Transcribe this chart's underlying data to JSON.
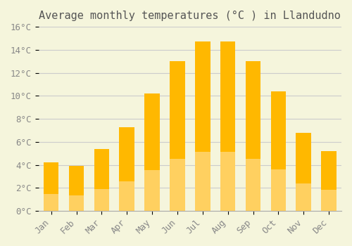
{
  "title": "Average monthly temperatures (°C ) in Llandudno",
  "months": [
    "Jan",
    "Feb",
    "Mar",
    "Apr",
    "May",
    "Jun",
    "Jul",
    "Aug",
    "Sep",
    "Oct",
    "Nov",
    "Dec"
  ],
  "values": [
    4.2,
    3.9,
    5.4,
    7.3,
    10.2,
    13.0,
    14.7,
    14.7,
    13.0,
    10.4,
    6.8,
    5.2
  ],
  "bar_color_top": "#FFB800",
  "bar_color_bottom": "#FFD060",
  "ylim": [
    0,
    16
  ],
  "ytick_step": 2,
  "background_color": "#F5F5DC",
  "grid_color": "#CCCCCC",
  "title_fontsize": 11,
  "tick_fontsize": 9,
  "font_family": "monospace"
}
